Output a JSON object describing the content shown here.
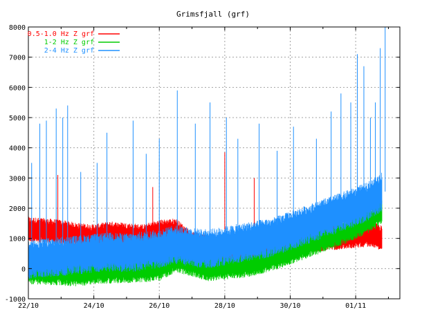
{
  "chart_data": {
    "type": "line",
    "title": "Grimsfjall (grf)",
    "xlabel": "",
    "ylabel": "",
    "xlim": [
      0,
      11.35
    ],
    "ylim": [
      -1000,
      8000
    ],
    "grid": true,
    "legend_position": "top-left",
    "y_ticks": [
      -1000,
      0,
      1000,
      2000,
      3000,
      4000,
      5000,
      6000,
      7000,
      8000
    ],
    "x_ticks": [
      {
        "label": "22/10",
        "day": 0
      },
      {
        "label": "24/10",
        "day": 2
      },
      {
        "label": "26/10",
        "day": 4
      },
      {
        "label": "28/10",
        "day": 6
      },
      {
        "label": "30/10",
        "day": 8
      },
      {
        "label": "01/11",
        "day": 10
      }
    ],
    "x_unit": "days since 22/10",
    "series": [
      {
        "name": "0.5-1.0 Hz Z grf",
        "color": "#ff0000",
        "x": [
          0,
          0.5,
          1,
          1.5,
          2,
          2.5,
          3,
          3.5,
          4,
          4.5,
          5,
          5.5,
          6,
          6.5,
          7,
          7.5,
          8,
          8.5,
          9,
          9.5,
          10,
          10.5,
          10.8
        ],
        "values": [
          1300,
          1250,
          1200,
          1100,
          1050,
          1150,
          1100,
          1050,
          1200,
          1250,
          800,
          700,
          650,
          600,
          700,
          800,
          900,
          950,
          1000,
          1050,
          1100,
          1150,
          1000
        ],
        "spikes": [
          {
            "x": 0.9,
            "value": 3100
          },
          {
            "x": 2.4,
            "value": 2600
          },
          {
            "x": 3.8,
            "value": 2700
          },
          {
            "x": 6.0,
            "value": 3850
          },
          {
            "x": 6.9,
            "value": 3000
          }
        ]
      },
      {
        "name": "1-2 Hz Z grf",
        "color": "#00cc00",
        "x": [
          0,
          0.5,
          1,
          1.5,
          2,
          2.5,
          3,
          3.5,
          4,
          4.5,
          5,
          5.5,
          6,
          6.5,
          7,
          7.5,
          8,
          8.5,
          9,
          9.5,
          10,
          10.5,
          10.8
        ],
        "values": [
          -100,
          -120,
          -150,
          -180,
          -100,
          -80,
          -60,
          -40,
          0,
          300,
          150,
          0,
          50,
          100,
          200,
          350,
          550,
          750,
          950,
          1150,
          1400,
          1650,
          1900
        ],
        "spikes": [
          {
            "x": 9.8,
            "value": 2200
          },
          {
            "x": 10.7,
            "value": 2500
          }
        ]
      },
      {
        "name": "2-4 Hz Z grf",
        "color": "#1e90ff",
        "x": [
          0,
          0.5,
          1,
          1.5,
          2,
          2.5,
          3,
          3.5,
          4,
          4.5,
          5,
          5.5,
          6,
          6.5,
          7,
          7.5,
          8,
          8.5,
          9,
          9.5,
          10,
          10.5,
          10.8
        ],
        "values": [
          300,
          350,
          400,
          450,
          500,
          550,
          520,
          580,
          650,
          800,
          700,
          650,
          750,
          850,
          950,
          1050,
          1250,
          1450,
          1650,
          1850,
          2050,
          2300,
          2550
        ],
        "spikes": [
          {
            "x": 0.1,
            "value": 3500
          },
          {
            "x": 0.35,
            "value": 4800
          },
          {
            "x": 0.55,
            "value": 4900
          },
          {
            "x": 0.85,
            "value": 5300
          },
          {
            "x": 1.05,
            "value": 5000
          },
          {
            "x": 1.2,
            "value": 5400
          },
          {
            "x": 1.6,
            "value": 3200
          },
          {
            "x": 2.1,
            "value": 3500
          },
          {
            "x": 2.4,
            "value": 4500
          },
          {
            "x": 3.2,
            "value": 4900
          },
          {
            "x": 3.6,
            "value": 3800
          },
          {
            "x": 4.0,
            "value": 4300
          },
          {
            "x": 4.55,
            "value": 5900
          },
          {
            "x": 5.1,
            "value": 4800
          },
          {
            "x": 5.55,
            "value": 5500
          },
          {
            "x": 6.05,
            "value": 5000
          },
          {
            "x": 6.4,
            "value": 4300
          },
          {
            "x": 7.05,
            "value": 4800
          },
          {
            "x": 7.6,
            "value": 3900
          },
          {
            "x": 8.1,
            "value": 4700
          },
          {
            "x": 8.8,
            "value": 4300
          },
          {
            "x": 9.25,
            "value": 5200
          },
          {
            "x": 9.55,
            "value": 5800
          },
          {
            "x": 9.85,
            "value": 5500
          },
          {
            "x": 10.05,
            "value": 7100
          },
          {
            "x": 10.25,
            "value": 6700
          },
          {
            "x": 10.45,
            "value": 5000
          },
          {
            "x": 10.6,
            "value": 5500
          },
          {
            "x": 10.75,
            "value": 7300
          },
          {
            "x": 10.9,
            "value": 8000
          }
        ]
      }
    ]
  }
}
